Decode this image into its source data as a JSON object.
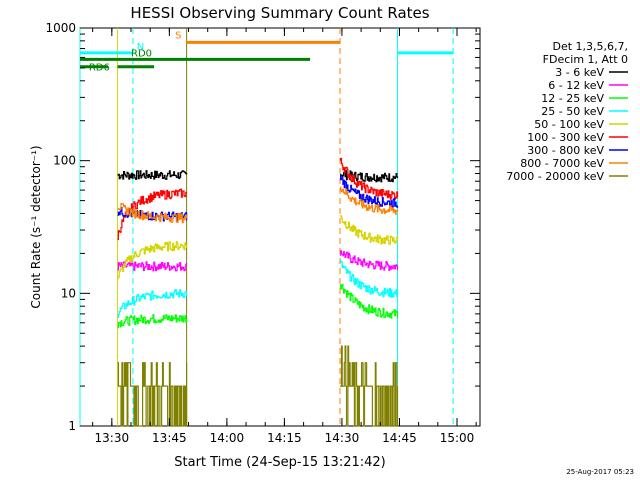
{
  "chart_data": {
    "type": "line",
    "title": "HESSI Observing Summary Count Rates",
    "xlabel": "Start Time (24-Sep-15 13:21:42)",
    "ylabel": "Count Rate (s⁻¹ detector⁻¹)",
    "y_scale": "log",
    "ylim": [
      1,
      1000
    ],
    "xlim_minutes_after_1300": [
      21.7,
      81.7
    ],
    "x_ticks": [
      {
        "m": 30,
        "label": "13:30"
      },
      {
        "m": 45,
        "label": "13:45"
      },
      {
        "m": 60,
        "label": "14:00"
      },
      {
        "m": 75,
        "label": "14:15"
      },
      {
        "m": 90,
        "label": "14:30"
      },
      {
        "m": 105,
        "label": "14:45"
      },
      {
        "m": 120,
        "label": "15:00"
      }
    ],
    "y_ticks": [
      {
        "v": 1,
        "label": "1"
      },
      {
        "v": 10,
        "label": "10"
      },
      {
        "v": 100,
        "label": "100"
      },
      {
        "v": 1000,
        "label": "1000"
      }
    ],
    "legend_header": [
      "Det 1,3,5,6,7,",
      "FDecim 1, Att 0"
    ],
    "legend_position": "right",
    "series": [
      {
        "name": "3 - 6 keV",
        "color": "#000000",
        "seg1": [
          78,
          78
        ],
        "seg2": [
          80,
          75
        ]
      },
      {
        "name": "6 - 12 keV",
        "color": "#ff00ff",
        "seg1": [
          16,
          16
        ],
        "seg2": [
          21,
          16
        ]
      },
      {
        "name": "12 - 25 keV",
        "color": "#00ff00",
        "seg1": [
          6,
          6.5
        ],
        "seg2": [
          12,
          7
        ]
      },
      {
        "name": "25 - 50 keV",
        "color": "#00ffff",
        "seg1": [
          7,
          10
        ],
        "seg2": [
          17,
          10
        ]
      },
      {
        "name": "50 - 100 keV",
        "color": "#d4d400",
        "seg1": [
          13,
          23
        ],
        "seg2": [
          38,
          25
        ]
      },
      {
        "name": "100 - 300 keV",
        "color": "#ff0000",
        "seg1": [
          27,
          57
        ],
        "seg2": [
          100,
          55
        ]
      },
      {
        "name": "300 - 800 keV",
        "color": "#0000ff",
        "seg1": [
          42,
          38
        ],
        "seg2": [
          75,
          48
        ]
      },
      {
        "name": "800 - 7000 keV",
        "color": "#ff8000",
        "seg1": [
          46,
          37
        ],
        "seg2": [
          65,
          42
        ]
      },
      {
        "name": "7000 - 20000 keV",
        "color": "#808000",
        "seg1": [
          2.5,
          1.7
        ],
        "seg2": [
          3.2,
          1.5
        ]
      }
    ],
    "data_segments_minutes": [
      [
        31.5,
        49.5
      ],
      [
        89.5,
        104.5
      ]
    ],
    "annotations": [
      {
        "label": "N",
        "color": "#00ffff"
      },
      {
        "label": "S",
        "color": "#ff8000"
      },
      {
        "label": "RD0",
        "color": "#008000"
      },
      {
        "label": "RD6",
        "color": "#008000"
      }
    ],
    "flag_bars": [
      {
        "flag": "N",
        "color": "#00ffff",
        "spans": [
          [
            21.7,
            35.5
          ],
          [
            104.5,
            119
          ]
        ],
        "level": 650
      },
      {
        "flag": "S",
        "color": "#ff8000",
        "spans": [
          [
            49.5,
            89.5
          ]
        ],
        "level": 780
      },
      {
        "flag": "RD0",
        "color": "#008000",
        "spans": [
          [
            21.7,
            81.7
          ]
        ],
        "level": 580
      },
      {
        "flag": "RD6",
        "color": "#008000",
        "spans": [
          [
            21.7,
            29
          ],
          [
            31.5,
            41
          ]
        ],
        "level": 510
      }
    ],
    "vlines": [
      {
        "m": 21.7,
        "color": "#00ffff",
        "style": "solid"
      },
      {
        "m": 35.5,
        "color": "#00ffff",
        "style": "dashed"
      },
      {
        "m": 31.5,
        "color": "#d4d400",
        "style": "solid"
      },
      {
        "m": 49.5,
        "color": "#808000",
        "style": "solid"
      },
      {
        "m": 89.5,
        "color": "#ff8000",
        "style": "dashed"
      },
      {
        "m": 104.5,
        "color": "#00ffff",
        "style": "solid"
      },
      {
        "m": 119,
        "color": "#00ffff",
        "style": "dashed"
      }
    ],
    "grid": false
  },
  "footer": "25-Aug-2017 05:23"
}
